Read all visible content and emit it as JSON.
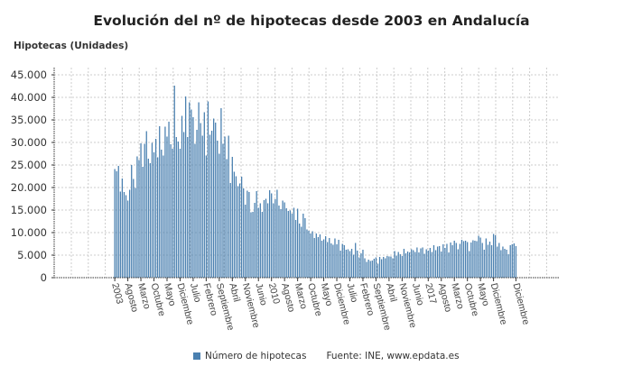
{
  "chart_data": {
    "type": "bar",
    "title": "Evolución del nº de hipotecas desde 2003 en Andalucía",
    "ylabel": "Hipotecas (Unidades)",
    "xlabel": "",
    "ylim": [
      0,
      45000
    ],
    "yticks": [
      "0",
      "5.000",
      "10.000",
      "15.000",
      "20.000",
      "25.000",
      "30.000",
      "35.000",
      "40.000",
      "45.000"
    ],
    "ytick_values": [
      0,
      5000,
      10000,
      15000,
      20000,
      25000,
      30000,
      35000,
      40000,
      45000
    ],
    "x_start": "2003-01",
    "x_end": "2020-12",
    "x_frequency": "monthly",
    "xtick_labels": [
      "2003",
      "Agosto",
      "Marzo",
      "Octubre",
      "Mayo",
      "Diciembre",
      "Julio",
      "Febrero",
      "Septiembre",
      "Abril",
      "Noviembre",
      "Junio",
      "2010",
      "Agosto",
      "Marzo",
      "Octubre",
      "Mayo",
      "Diciembre",
      "Julio",
      "Febrero",
      "Septiembre",
      "Abril",
      "Noviembre",
      "Junio",
      "2017",
      "Agosto",
      "Marzo",
      "Octubre",
      "Mayo",
      "Diciembre",
      "Diciembre"
    ],
    "grid": true,
    "legend_position": "bottom",
    "series": [
      {
        "name": "Número de hipotecas",
        "color": "#4a80b0",
        "values": [
          24100,
          23600,
          24800,
          19100,
          22000,
          19000,
          18300,
          17100,
          19500,
          25000,
          21900,
          19900,
          26900,
          26100,
          29800,
          24600,
          29700,
          32500,
          26400,
          25400,
          29900,
          27800,
          30800,
          26700,
          33600,
          28400,
          27100,
          33500,
          31300,
          34600,
          29600,
          28600,
          42600,
          31200,
          30200,
          28600,
          35900,
          32300,
          40200,
          31200,
          38900,
          37300,
          35600,
          29700,
          32800,
          38900,
          34300,
          31500,
          36700,
          27100,
          39100,
          31700,
          32600,
          35300,
          34400,
          30400,
          27500,
          37600,
          29700,
          31300,
          26300,
          31500,
          21000,
          26800,
          23500,
          22500,
          20300,
          20900,
          22400,
          19800,
          16200,
          19300,
          19000,
          14500,
          14600,
          16600,
          19200,
          15500,
          16500,
          14600,
          17200,
          17500,
          16500,
          19400,
          18700,
          16500,
          17400,
          19500,
          16000,
          15200,
          17100,
          16700,
          15400,
          14800,
          14900,
          14200,
          15500,
          12800,
          15300,
          12000,
          11300,
          14200,
          13200,
          10700,
          10400,
          9800,
          10300,
          8800,
          9800,
          9000,
          9600,
          8200,
          8500,
          9200,
          7900,
          8800,
          7600,
          7300,
          8700,
          7400,
          8400,
          6000,
          7500,
          7200,
          6200,
          6300,
          5900,
          6400,
          5100,
          7700,
          6000,
          4500,
          5400,
          6200,
          4300,
          3500,
          4000,
          3700,
          3800,
          4200,
          4500,
          3100,
          4600,
          4100,
          4600,
          4300,
          4800,
          4700,
          4700,
          4300,
          5900,
          4900,
          5700,
          5200,
          4800,
          6400,
          5400,
          5800,
          5600,
          6300,
          6100,
          5700,
          6700,
          5600,
          6500,
          6700,
          5300,
          6300,
          6000,
          6600,
          5700,
          7200,
          6100,
          6900,
          7000,
          5800,
          7400,
          6600,
          7500,
          5600,
          7800,
          7200,
          8200,
          7700,
          6300,
          7500,
          8400,
          8100,
          8200,
          7900,
          5900,
          7800,
          8300,
          8200,
          8100,
          9300,
          8900,
          7700,
          6200,
          8700,
          7300,
          8000,
          7200,
          9700,
          9400,
          6900,
          7700,
          6100,
          6900,
          6400,
          6200,
          5200,
          7200,
          7400,
          7600,
          7000
        ]
      }
    ],
    "source": "Fuente: INE, www.epdata.es"
  }
}
